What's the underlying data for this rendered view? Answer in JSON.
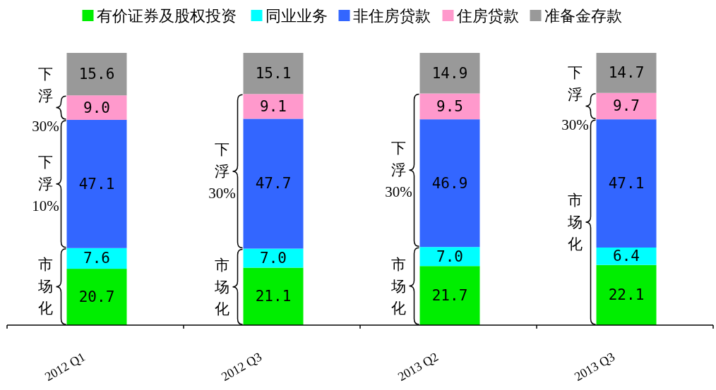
{
  "chart_data": {
    "type": "bar",
    "stacked": true,
    "legend": "top",
    "categories": [
      "2012 Q1",
      "2012 Q3",
      "2013 Q2",
      "2013 Q3"
    ],
    "series": [
      {
        "name": "有价证券及股权投资",
        "color": "#00ee00",
        "values": [
          20.7,
          21.1,
          21.7,
          22.1
        ],
        "value_labels": [
          "20.7",
          "21.1",
          "21.7",
          "22.1"
        ]
      },
      {
        "name": "同业业务",
        "color": "#00ffff",
        "values": [
          7.6,
          7.0,
          7.0,
          6.4
        ],
        "value_labels": [
          "7.6",
          "7.0",
          "7.0",
          "6.4"
        ]
      },
      {
        "name": "非住房贷款",
        "color": "#3366ff",
        "values": [
          47.1,
          47.7,
          46.9,
          47.1
        ],
        "value_labels": [
          "47.1",
          "47.7",
          "46.9",
          "47.1"
        ]
      },
      {
        "name": "住房贷款",
        "color": "#ff99cc",
        "values": [
          9.0,
          9.1,
          9.5,
          9.7
        ],
        "value_labels": [
          "9.0",
          "9.1",
          "9.5",
          "9.7"
        ]
      },
      {
        "name": "准备金存款",
        "color": "#999999",
        "values": [
          15.6,
          15.1,
          14.9,
          14.7
        ],
        "value_labels": [
          "15.6",
          "15.1",
          "14.9",
          "14.7"
        ]
      }
    ],
    "annotations": [
      {
        "text": "市场化",
        "x": "2012 Q1",
        "y": 14.15
      },
      {
        "text": "下浮10%",
        "x": "2012 Q1",
        "y": 51.85
      },
      {
        "text": "下浮30%",
        "x": "2012 Q1",
        "y": 79.9
      },
      {
        "text": "市场化",
        "x": "2012 Q3",
        "y": 14.05
      },
      {
        "text": "下浮30%",
        "x": "2012 Q3",
        "y": 56.5
      },
      {
        "text": "市场化",
        "x": "2013 Q2",
        "y": 14.35
      },
      {
        "text": "下浮30%",
        "x": "2013 Q2",
        "y": 56.9
      },
      {
        "text": "市场化",
        "x": "2013 Q3",
        "y": 37.8
      },
      {
        "text": "下浮30%",
        "x": "2013 Q3",
        "y": 80.45
      }
    ]
  }
}
